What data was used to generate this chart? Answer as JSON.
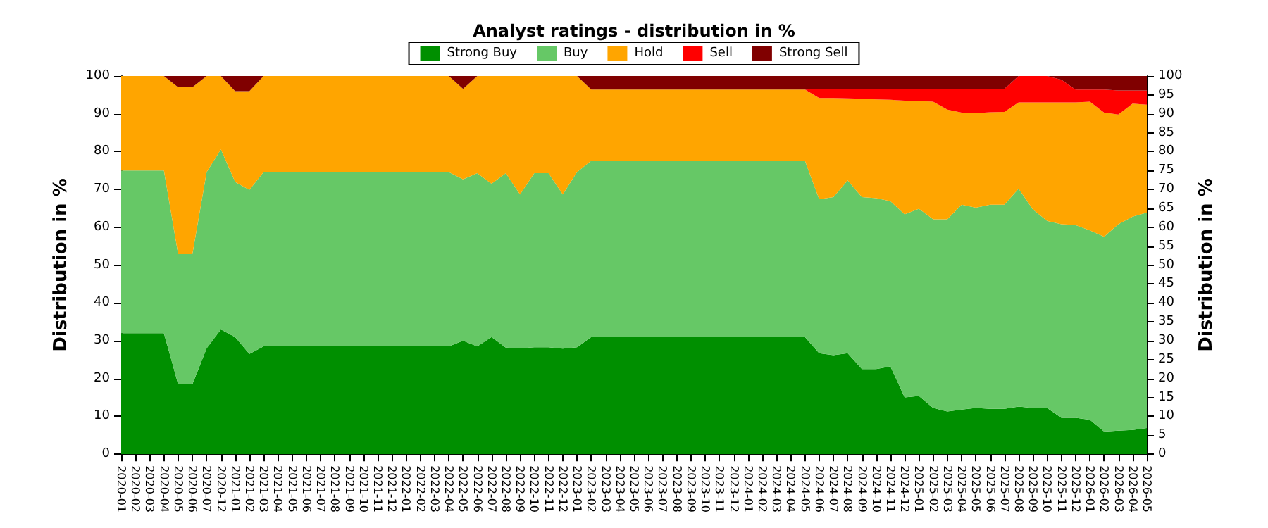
{
  "chart_data": {
    "type": "area",
    "stacked": true,
    "title": "Analyst ratings - distribution in %",
    "ylabel": "Distribution in %",
    "y2label": "Distribution in %",
    "categories": [
      "2020-01",
      "2020-02",
      "2020-03",
      "2020-04",
      "2020-05",
      "2020-06",
      "2020-07",
      "2020-12",
      "2021-01",
      "2021-02",
      "2021-03",
      "2021-04",
      "2021-05",
      "2021-06",
      "2021-07",
      "2021-08",
      "2021-09",
      "2021-10",
      "2021-11",
      "2021-12",
      "2022-01",
      "2022-02",
      "2022-03",
      "2022-04",
      "2022-05",
      "2022-06",
      "2022-07",
      "2022-08",
      "2022-09",
      "2022-10",
      "2022-11",
      "2022-12",
      "2023-01",
      "2023-02",
      "2023-03",
      "2023-04",
      "2023-05",
      "2023-06",
      "2023-07",
      "2023-08",
      "2023-09",
      "2023-10",
      "2023-11",
      "2023-12",
      "2024-01",
      "2024-02",
      "2024-03",
      "2024-04",
      "2024-05",
      "2024-06",
      "2024-07",
      "2024-08",
      "2024-09",
      "2024-10",
      "2024-11",
      "2024-12",
      "2025-01",
      "2025-02",
      "2025-03",
      "2025-04",
      "2025-05",
      "2025-06",
      "2025-07",
      "2025-08",
      "2025-09",
      "2025-10",
      "2025-11",
      "2025-12",
      "2026-01",
      "2026-02",
      "2026-03",
      "2026-04",
      "2026-05"
    ],
    "series": [
      {
        "name": "Strong Buy",
        "color": "#008f00",
        "values": [
          32,
          32,
          32,
          32,
          18.5,
          18.5,
          28,
          33,
          31,
          26.5,
          28.5,
          28.5,
          28.5,
          28.5,
          28.5,
          28.5,
          28.5,
          28.5,
          28.5,
          28.5,
          28.5,
          28.5,
          28.5,
          28.5,
          30,
          28.5,
          31,
          28.2,
          28,
          28.3,
          28.3,
          27.9,
          28.3,
          31,
          31,
          31,
          31,
          31,
          31,
          31,
          31,
          31,
          31,
          31,
          31,
          31,
          31,
          31,
          31,
          26.7,
          26.2,
          26.7,
          22.5,
          22.5,
          23.2,
          15,
          15.4,
          12.2,
          11.3,
          11.8,
          12.2,
          12,
          12,
          12.6,
          12.2,
          12.2,
          9.6,
          9.6,
          9.1,
          6,
          6.2,
          6.4,
          6.9
        ]
      },
      {
        "name": "Buy",
        "color": "#66c866",
        "values": [
          43,
          43,
          43,
          43,
          34.4,
          34.4,
          46.6,
          47.6,
          41,
          43.4,
          46.1,
          46.1,
          46.1,
          46.1,
          46.1,
          46.1,
          46.1,
          46.1,
          46.1,
          46.1,
          46.1,
          46.1,
          46.1,
          46.1,
          42.7,
          45.8,
          40.5,
          46.1,
          40.7,
          46,
          46,
          40.8,
          46.3,
          46.6,
          46.6,
          46.6,
          46.6,
          46.6,
          46.6,
          46.6,
          46.6,
          46.6,
          46.6,
          46.6,
          46.6,
          46.6,
          46.6,
          46.6,
          46.6,
          40.7,
          41.8,
          45.7,
          45.5,
          45.2,
          43.7,
          48.4,
          49.5,
          49.9,
          50.8,
          54.2,
          53,
          54,
          54,
          57.6,
          52.5,
          49.5,
          51.2,
          51,
          50.1,
          51.5,
          54.6,
          56.4,
          57
        ]
      },
      {
        "name": "Hold",
        "color": "#ffa500",
        "values": [
          25,
          25,
          25,
          25,
          44.1,
          44.1,
          25.4,
          19.4,
          24,
          26.1,
          25.4,
          25.4,
          25.4,
          25.4,
          25.4,
          25.4,
          25.4,
          25.4,
          25.4,
          25.4,
          25.4,
          25.4,
          25.4,
          25.4,
          23.9,
          25.7,
          28.5,
          25.7,
          31.3,
          25.7,
          25.7,
          31.3,
          25.4,
          18.8,
          18.8,
          18.8,
          18.8,
          18.8,
          18.8,
          18.8,
          18.8,
          18.8,
          18.8,
          18.8,
          18.8,
          18.8,
          18.8,
          18.8,
          18.8,
          26.8,
          26.2,
          21.7,
          26,
          26.1,
          26.8,
          30.1,
          28.5,
          31.1,
          29,
          24.3,
          25,
          24.4,
          24.5,
          22.8,
          28.3,
          31.3,
          32.2,
          32.4,
          34,
          32.8,
          29,
          29.9,
          28.5
        ]
      },
      {
        "name": "Sell",
        "color": "#ff0000",
        "values": [
          0,
          0,
          0,
          0,
          0,
          0,
          0,
          0,
          0,
          0,
          0,
          0,
          0,
          0,
          0,
          0,
          0,
          0,
          0,
          0,
          0,
          0,
          0,
          0,
          0,
          0,
          0,
          0,
          0,
          0,
          0,
          0,
          0,
          0,
          0,
          0,
          0,
          0,
          0,
          0,
          0,
          0,
          0,
          0,
          0,
          0,
          0,
          0,
          0,
          2.4,
          2.4,
          2.5,
          2.6,
          2.8,
          2.9,
          3.1,
          3.2,
          3.4,
          5.5,
          6.3,
          6.4,
          6.2,
          6.1,
          7,
          7,
          7,
          6,
          3.4,
          3.2,
          6.1,
          6.4,
          3.5,
          3.8
        ]
      },
      {
        "name": "Strong Sell",
        "color": "#800000",
        "values": [
          0,
          0,
          0,
          0,
          3,
          3,
          0,
          0,
          4,
          4,
          0,
          0,
          0,
          0,
          0,
          0,
          0,
          0,
          0,
          0,
          0,
          0,
          0,
          0,
          3.4,
          0,
          0,
          0,
          0,
          0,
          0,
          0,
          0,
          3.6,
          3.6,
          3.6,
          3.6,
          3.6,
          3.6,
          3.6,
          3.6,
          3.6,
          3.6,
          3.6,
          3.6,
          3.6,
          3.6,
          3.6,
          3.6,
          3.4,
          3.4,
          3.4,
          3.4,
          3.4,
          3.4,
          3.4,
          3.4,
          3.4,
          3.4,
          3.4,
          3.4,
          3.4,
          3.4,
          0,
          0,
          0,
          1,
          3.6,
          3.6,
          3.6,
          3.8,
          3.8,
          3.8
        ]
      }
    ],
    "ylim": [
      0,
      100
    ],
    "yticks": [
      0,
      10,
      20,
      30,
      40,
      50,
      60,
      70,
      80,
      90,
      100
    ],
    "y2lim": [
      0,
      100
    ],
    "y2ticks": [
      0,
      5,
      10,
      15,
      20,
      25,
      30,
      35,
      40,
      45,
      50,
      55,
      60,
      65,
      70,
      75,
      80,
      85,
      90,
      95,
      100
    ],
    "grid": "y",
    "legend": "top"
  }
}
